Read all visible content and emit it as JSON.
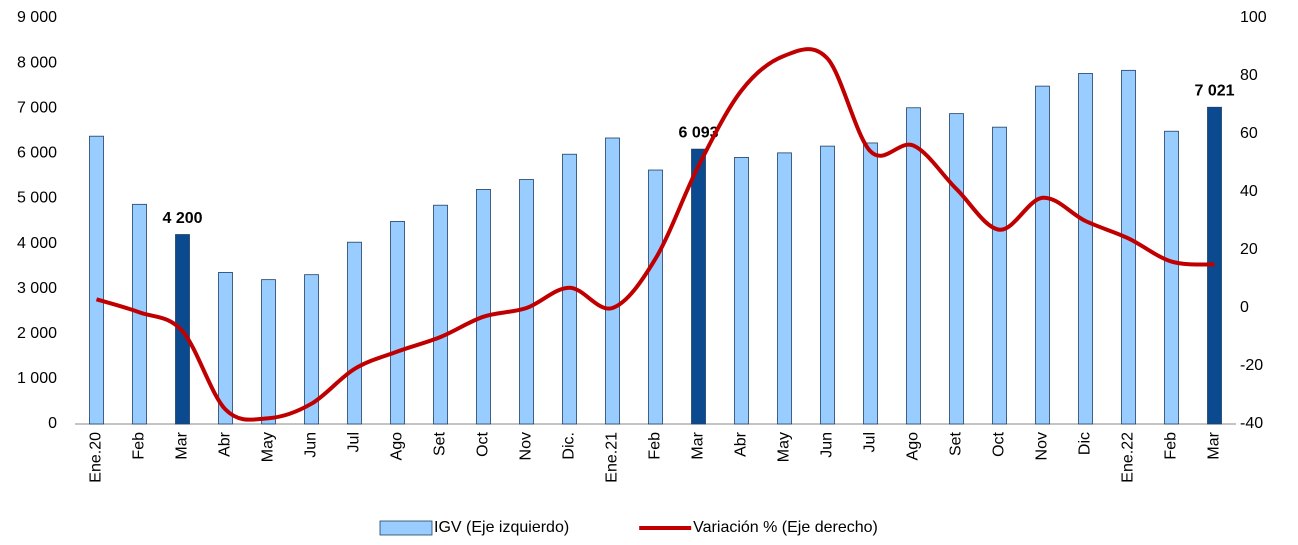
{
  "chart_data": {
    "type": "bar_line",
    "categories": [
      "Ene.20",
      "Feb",
      "Mar",
      "Abr",
      "May",
      "Jun",
      "Jul",
      "Ago",
      "Set",
      "Oct",
      "Nov",
      "Dic.",
      "Ene.21",
      "Feb",
      "Mar",
      "Abr",
      "May",
      "Jun",
      "Jul",
      "Ago",
      "Set",
      "Oct",
      "Nov",
      "Dic",
      "Ene.22",
      "Feb",
      "Mar"
    ],
    "series": [
      {
        "name": "IGV (Eje izquierdo)",
        "type": "bar",
        "color": "#99ccff",
        "border": "#1f3f66",
        "colors": [
          "#99ccff",
          "#99ccff",
          "#0b4a8f",
          "#99ccff",
          "#99ccff",
          "#99ccff",
          "#99ccff",
          "#99ccff",
          "#99ccff",
          "#99ccff",
          "#99ccff",
          "#99ccff",
          "#99ccff",
          "#99ccff",
          "#0b4a8f",
          "#99ccff",
          "#99ccff",
          "#99ccff",
          "#99ccff",
          "#99ccff",
          "#99ccff",
          "#99ccff",
          "#99ccff",
          "#99ccff",
          "#99ccff",
          "#99ccff",
          "#0b4a8f"
        ],
        "values": [
          6380,
          4870,
          4200,
          3360,
          3200,
          3310,
          4030,
          4490,
          4850,
          5200,
          5420,
          5980,
          6340,
          5630,
          6093,
          5910,
          6010,
          6160,
          6230,
          7010,
          6880,
          6580,
          7490,
          7770,
          7840,
          6490,
          7021
        ],
        "value_labels": [
          null,
          null,
          "4 200",
          null,
          null,
          null,
          null,
          null,
          null,
          null,
          null,
          null,
          null,
          null,
          "6 093",
          null,
          null,
          null,
          null,
          null,
          null,
          null,
          null,
          null,
          null,
          null,
          "7 021"
        ]
      },
      {
        "name": "Variación % (Eje derecho)",
        "type": "line",
        "axis": "y2",
        "color": "#c00000",
        "values": [
          3,
          -1.5,
          -8,
          -35,
          -38,
          -33,
          -21,
          -15,
          -10,
          -3,
          0,
          7,
          0,
          17,
          49,
          75,
          87,
          86,
          54,
          56,
          41,
          27,
          38,
          30,
          24,
          16,
          15
        ]
      }
    ],
    "ylim": [
      0,
      9000
    ],
    "yticks": [
      0,
      {
        "value": 1000,
        "label": "1 000"
      },
      {
        "value": 2000,
        "label": "2 000"
      },
      {
        "value": 3000,
        "label": "3 000"
      },
      {
        "value": 4000,
        "label": "4 000"
      },
      {
        "value": 5000,
        "label": "5 000"
      },
      {
        "value": 6000,
        "label": "6 000"
      },
      {
        "value": 7000,
        "label": "7 000"
      },
      {
        "value": 8000,
        "label": "8 000"
      },
      {
        "value": 9000,
        "label": "9 000"
      }
    ],
    "y2lim": [
      -40,
      100
    ],
    "y2ticks": [
      -40,
      -20,
      0,
      20,
      40,
      60,
      80,
      100
    ],
    "legend": "bottom"
  }
}
